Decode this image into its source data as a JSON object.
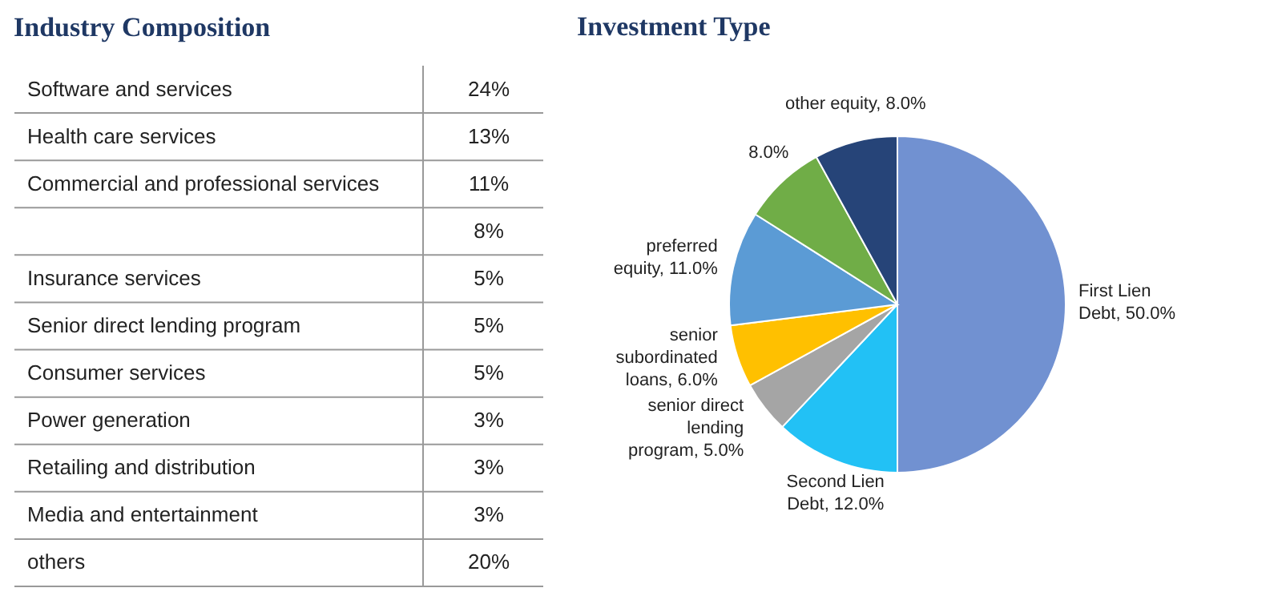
{
  "chart_data": [
    {
      "type": "other",
      "title": "Industry Composition",
      "categories": [
        "Software and services",
        "Health care services",
        "Commercial and professional services",
        null,
        "Insurance services",
        "Senior direct lending program",
        "Consumer services",
        "Power generation",
        "Retailing and distribution",
        "Media and entertainment",
        "others"
      ],
      "value_labels": [
        "24%",
        "13%",
        "11%",
        "8%",
        "5%",
        "5%",
        "5%",
        "3%",
        "3%",
        "3%",
        "20%"
      ]
    },
    {
      "type": "pie",
      "title": "Investment Type",
      "categories": [
        "First Lien Debt",
        "Second Lien Debt",
        "senior direct lending program",
        "senior subordinated loans",
        "preferred equity",
        null,
        "other equity"
      ],
      "values": [
        50,
        12,
        5,
        6,
        11,
        8,
        8
      ],
      "colors": [
        "#7191d1",
        "#22c1f5",
        "#a5a5a5",
        "#ffc000",
        "#5b9bd5",
        "#70ad47",
        "#264478"
      ],
      "value_labels": [
        "50.0%",
        "12.0%",
        "5.0%",
        "6.0%",
        "11.0%",
        "8.0%",
        "8.0%"
      ]
    }
  ]
}
